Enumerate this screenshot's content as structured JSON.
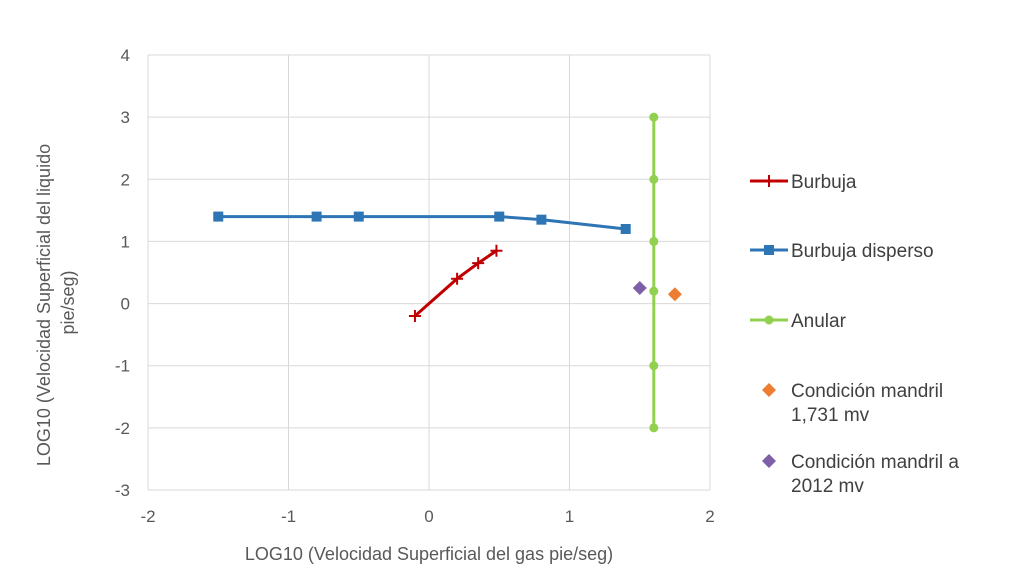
{
  "chart_data": {
    "type": "scatter",
    "title": "",
    "xlabel": "LOG10 (Velocidad Superficial del gas pie/seg)",
    "ylabel_lines": [
      "LOG10 (Velocidad Superficial del liquido",
      "pie/seg)"
    ],
    "xlim": [
      -2,
      2
    ],
    "ylim": [
      -3,
      4
    ],
    "xticks": [
      "-2",
      "-1",
      "0",
      "1",
      "2"
    ],
    "yticks": [
      "4",
      "3",
      "2",
      "1",
      "0",
      "-1",
      "-2",
      "-3"
    ],
    "grid": true,
    "legend_position": "right",
    "series": [
      {
        "name": "Burbuja",
        "color": "#c00000",
        "marker": "plus",
        "line": true,
        "points": [
          [
            -0.1,
            -0.2
          ],
          [
            0.2,
            0.4
          ],
          [
            0.35,
            0.65
          ],
          [
            0.48,
            0.85
          ]
        ]
      },
      {
        "name": "Burbuja disperso",
        "color": "#2e75b6",
        "marker": "square",
        "line": true,
        "points": [
          [
            -1.5,
            1.4
          ],
          [
            -0.8,
            1.4
          ],
          [
            -0.5,
            1.4
          ],
          [
            0.5,
            1.4
          ],
          [
            0.8,
            1.35
          ],
          [
            1.4,
            1.2
          ]
        ]
      },
      {
        "name": "Anular",
        "color": "#92d050",
        "marker": "circle",
        "line": true,
        "points": [
          [
            1.6,
            3
          ],
          [
            1.6,
            2
          ],
          [
            1.6,
            1
          ],
          [
            1.6,
            0.2
          ],
          [
            1.6,
            -1
          ],
          [
            1.6,
            -2
          ]
        ]
      },
      {
        "name_lines": [
          "Condición mandril",
          "1,731 mv"
        ],
        "color": "#ed7d31",
        "marker": "diamond",
        "line": false,
        "points": [
          [
            1.75,
            0.15
          ]
        ]
      },
      {
        "name_lines": [
          "Condición mandril a",
          "2012 mv"
        ],
        "color": "#7f5fa8",
        "marker": "diamond",
        "line": false,
        "points": [
          [
            1.5,
            0.25
          ]
        ]
      }
    ]
  }
}
